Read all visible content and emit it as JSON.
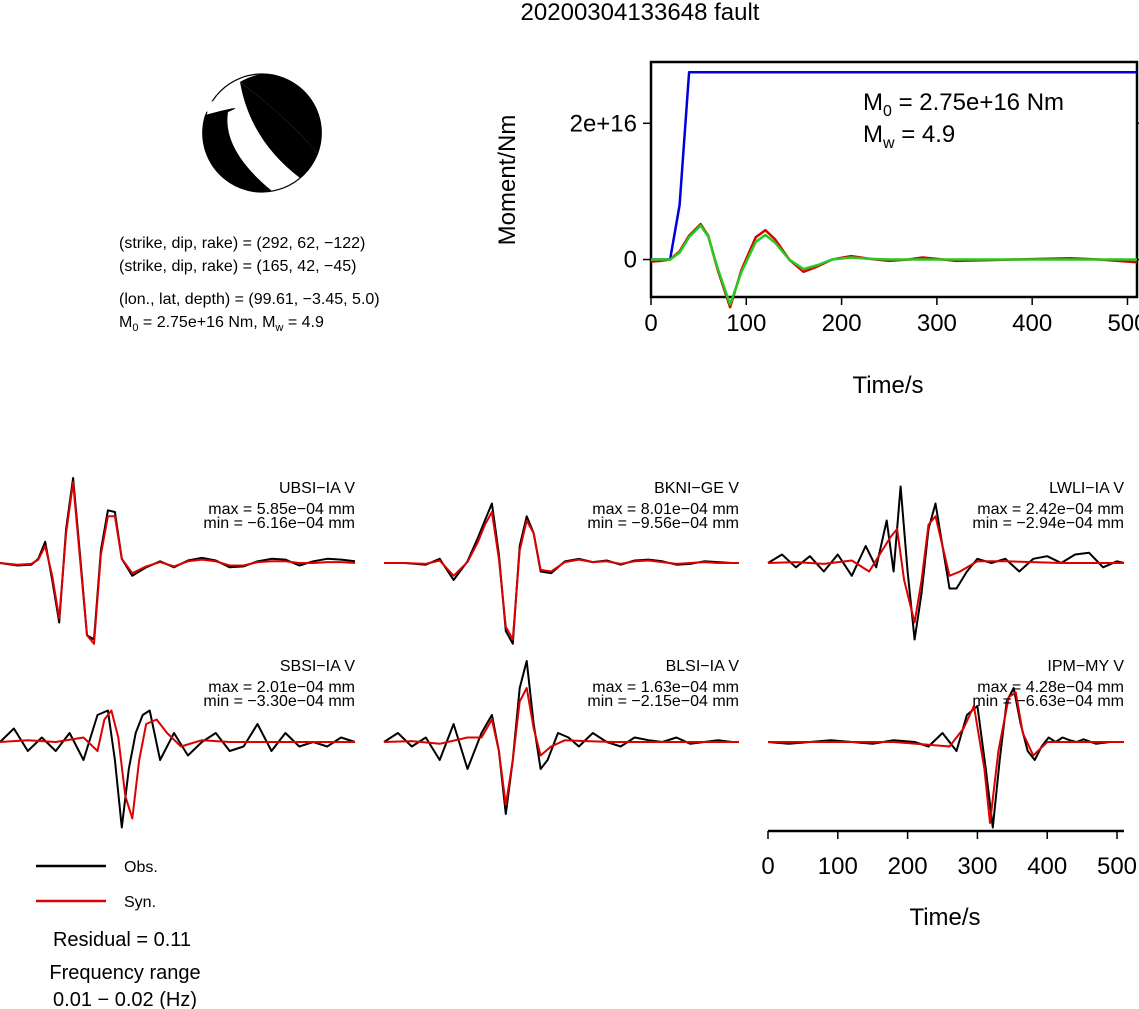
{
  "title": "20200304133648 fault",
  "colors": {
    "obs": "#000000",
    "syn": "#dd0000",
    "stf_cumulative": "#0000dd",
    "stf_rate": "#22cc22"
  },
  "mechanism": {
    "line1": "(strike, dip, rake) = (292, 62, −122)",
    "line2": "(strike, dip, rake) = (165, 42, −45)",
    "line3": "(lon., lat, depth) = (99.61, −3.45, 5.0)",
    "m0_prefix": "M",
    "m0_sub": "0",
    "line4_rest": " = 2.75e+16 Nm, M",
    "mw_sub": "w",
    "line4_end": " = 4.9"
  },
  "legend": {
    "obs": "Obs.",
    "syn": "Syn."
  },
  "footer": {
    "residual": "Residual = 0.11",
    "freq_label": "Frequency range",
    "freq_value": "0.01 − 0.02 (Hz)"
  },
  "chart_data": [
    {
      "type": "line",
      "name": "source-time-function",
      "xlabel": "Time/s",
      "ylabel": "Moment/Nm",
      "xlim": [
        0,
        510
      ],
      "ylim": [
        -5500000000000000.0,
        2.9e+16
      ],
      "xticks": [
        0,
        100,
        200,
        300,
        400,
        500
      ],
      "yticks": [
        {
          "value": 0,
          "label": "0"
        },
        {
          "value": 2e+16,
          "label": "2e+16"
        }
      ],
      "annotation_m0": {
        "symbol": "M",
        "sub": "0",
        "rest": " = 2.75e+16 Nm"
      },
      "annotation_mw": {
        "symbol": "M",
        "sub": "w",
        "rest": " = 4.9"
      },
      "series": [
        {
          "color": "#0000dd",
          "x": [
            0,
            20,
            30,
            40,
            510
          ],
          "y": [
            0,
            0,
            8000000000000000.0,
            2.75e+16,
            2.75e+16
          ]
        },
        {
          "color": "#dd0000",
          "x": [
            0,
            10,
            20,
            30,
            40,
            52,
            60,
            70,
            83,
            95,
            110,
            120,
            130,
            145,
            160,
            175,
            190,
            210,
            230,
            250,
            270,
            285,
            300,
            320,
            350,
            380,
            410,
            440,
            470,
            490,
            510
          ],
          "y": [
            -300000000000000.0,
            -200000000000000.0,
            0,
            1200000000000000.0,
            3500000000000000.0,
            5200000000000000.0,
            3500000000000000.0,
            -1500000000000000.0,
            -7000000000000000.0,
            -1500000000000000.0,
            3300000000000000.0,
            4300000000000000.0,
            3000000000000000.0,
            0,
            -1800000000000000.0,
            -1000000000000000.0,
            0,
            500000000000000.0,
            100000000000000.0,
            -200000000000000.0,
            0,
            300000000000000.0,
            100000000000000.0,
            -200000000000000.0,
            -100000000000000.0,
            0,
            100000000000000.0,
            200000000000000.0,
            0,
            -200000000000000.0,
            -400000000000000.0
          ]
        },
        {
          "color": "#22cc22",
          "x": [
            0,
            10,
            20,
            30,
            40,
            52,
            60,
            70,
            83,
            95,
            110,
            120,
            130,
            145,
            160,
            175,
            190,
            210,
            230,
            250,
            270,
            300,
            330,
            360,
            400,
            450,
            510
          ],
          "y": [
            0,
            0,
            0,
            1000000000000000.0,
            3300000000000000.0,
            5000000000000000.0,
            3400000000000000.0,
            -1300000000000000.0,
            -6600000000000000.0,
            -1800000000000000.0,
            2600000000000000.0,
            3600000000000000.0,
            2500000000000000.0,
            0,
            -1400000000000000.0,
            -800000000000000.0,
            0,
            300000000000000.0,
            100000000000000.0,
            0,
            0,
            0,
            0,
            0,
            0,
            0,
            0
          ]
        }
      ]
    },
    {
      "type": "line",
      "name": "waveforms",
      "xlabel": "Time/s",
      "xlim": [
        0,
        510
      ],
      "xticks": [
        0,
        100,
        200,
        300,
        400,
        500
      ],
      "stations": [
        {
          "label": "UBSI−IA V",
          "max": "max = 5.85e−04 mm",
          "min": "min = −6.16e−04 mm",
          "obs_t": [
            0,
            25,
            45,
            55,
            65,
            75,
            85,
            95,
            105,
            115,
            125,
            135,
            145,
            155,
            165,
            175,
            190,
            210,
            230,
            250,
            270,
            290,
            310,
            330,
            350,
            370,
            390,
            410,
            430,
            450,
            470,
            490,
            510
          ],
          "obs": [
            0,
            -0.03,
            -0.02,
            0.05,
            0.25,
            -0.2,
            -0.7,
            0.4,
            1.0,
            0.1,
            -0.85,
            -0.9,
            0.15,
            0.62,
            0.6,
            0.05,
            -0.15,
            -0.05,
            0.02,
            -0.05,
            0.03,
            0.06,
            0.03,
            -0.05,
            -0.04,
            0.02,
            0.05,
            0.04,
            -0.03,
            0.02,
            0.05,
            0.04,
            0.02
          ],
          "syn_t": [
            0,
            25,
            45,
            55,
            65,
            75,
            85,
            95,
            105,
            115,
            125,
            135,
            145,
            155,
            165,
            175,
            190,
            210,
            230,
            250,
            270,
            290,
            310,
            330,
            350,
            370,
            390,
            410,
            430,
            450,
            470,
            490,
            510
          ],
          "syn": [
            0,
            -0.02,
            -0.01,
            0.04,
            0.2,
            -0.15,
            -0.65,
            0.35,
            0.95,
            0.05,
            -0.85,
            -0.95,
            0.1,
            0.55,
            0.55,
            0.05,
            -0.12,
            -0.04,
            0.01,
            -0.04,
            0.02,
            0.04,
            0.02,
            -0.03,
            -0.03,
            0.01,
            0.02,
            0.02,
            0.0,
            0.0,
            0.01,
            0.01,
            0.0
          ]
        },
        {
          "label": "BKNI−GE V",
          "max": "max = 8.01e−04 mm",
          "min": "min = −9.56e−04 mm",
          "obs_t": [
            0,
            30,
            60,
            80,
            100,
            120,
            135,
            145,
            155,
            165,
            175,
            185,
            195,
            205,
            215,
            225,
            240,
            260,
            280,
            300,
            320,
            340,
            360,
            380,
            400,
            420,
            440,
            460,
            480,
            500,
            510
          ],
          "obs": [
            0,
            0.0,
            -0.02,
            0.05,
            -0.2,
            0.02,
            0.3,
            0.5,
            0.7,
            0.1,
            -0.8,
            -0.95,
            0.2,
            0.55,
            0.35,
            -0.1,
            -0.12,
            0.02,
            0.05,
            0.01,
            0.03,
            -0.02,
            0.03,
            0.04,
            0.02,
            -0.02,
            -0.01,
            0.02,
            0.01,
            0.0,
            0.0
          ],
          "syn_t": [
            0,
            30,
            60,
            80,
            100,
            120,
            135,
            145,
            155,
            165,
            175,
            185,
            195,
            205,
            215,
            225,
            240,
            260,
            280,
            300,
            320,
            340,
            360,
            380,
            400,
            420,
            440,
            460,
            480,
            500,
            510
          ],
          "syn": [
            0,
            0.0,
            -0.01,
            0.03,
            -0.15,
            0.01,
            0.25,
            0.45,
            0.6,
            0.05,
            -0.75,
            -0.9,
            0.15,
            0.5,
            0.35,
            -0.08,
            -0.1,
            0.01,
            0.04,
            0.01,
            0.02,
            -0.01,
            0.02,
            0.03,
            0.01,
            -0.01,
            0.0,
            0.01,
            0.0,
            0.0,
            0.0
          ]
        },
        {
          "label": "LWLI−IA V",
          "max": "max = 2.42e−04 mm",
          "min": "min = −2.94e−04 mm",
          "obs_t": [
            0,
            20,
            40,
            60,
            80,
            100,
            120,
            140,
            155,
            170,
            180,
            190,
            200,
            210,
            220,
            230,
            240,
            250,
            260,
            270,
            285,
            300,
            320,
            340,
            360,
            380,
            400,
            420,
            440,
            460,
            480,
            500,
            510
          ],
          "obs": [
            0,
            0.1,
            -0.05,
            0.08,
            -0.1,
            0.1,
            -0.15,
            0.2,
            -0.05,
            0.5,
            -0.1,
            0.9,
            -0.1,
            -0.9,
            -0.35,
            0.4,
            0.7,
            0.2,
            -0.3,
            -0.3,
            -0.1,
            0.05,
            0.0,
            0.05,
            -0.1,
            0.05,
            0.08,
            0.0,
            0.1,
            0.12,
            -0.05,
            0.02,
            0.0
          ],
          "syn_t": [
            0,
            40,
            80,
            120,
            145,
            160,
            175,
            185,
            195,
            210,
            220,
            230,
            240,
            250,
            260,
            275,
            300,
            340,
            380,
            420,
            460,
            500,
            510
          ],
          "syn": [
            0,
            0.01,
            -0.01,
            0.03,
            -0.1,
            0.1,
            0.3,
            0.4,
            -0.2,
            -0.7,
            -0.2,
            0.45,
            0.55,
            0.2,
            -0.15,
            -0.1,
            0.02,
            0.02,
            0.01,
            0.0,
            0.0,
            0.0,
            0.0
          ]
        },
        {
          "label": "SBSI−IA V",
          "max": "max = 2.01e−04 mm",
          "min": "min = −3.30e−04 mm",
          "obs_t": [
            0,
            20,
            40,
            60,
            80,
            100,
            120,
            130,
            140,
            155,
            165,
            175,
            185,
            195,
            205,
            215,
            230,
            250,
            270,
            290,
            310,
            330,
            350,
            370,
            390,
            410,
            430,
            450,
            470,
            490,
            510
          ],
          "obs": [
            0,
            0.15,
            -0.1,
            0.05,
            -0.1,
            0.1,
            -0.2,
            0.05,
            0.3,
            0.35,
            -0.2,
            -0.95,
            -0.3,
            0.1,
            0.3,
            0.35,
            -0.2,
            0.1,
            -0.15,
            0.0,
            0.1,
            -0.1,
            -0.05,
            0.2,
            -0.1,
            0.1,
            -0.05,
            0.0,
            -0.05,
            0.05,
            0.0
          ],
          "syn_t": [
            0,
            40,
            80,
            120,
            140,
            150,
            160,
            170,
            180,
            190,
            200,
            210,
            225,
            240,
            260,
            290,
            330,
            370,
            410,
            450,
            490,
            510
          ],
          "syn": [
            0,
            0.02,
            0.0,
            0.05,
            -0.1,
            0.25,
            0.35,
            0.05,
            -0.6,
            -0.85,
            -0.2,
            0.2,
            0.25,
            0.1,
            -0.05,
            0.02,
            0.0,
            0.0,
            0.0,
            0.0,
            0.0,
            0.0
          ]
        },
        {
          "label": "BLSI−IA V",
          "max": "max = 1.63e−04 mm",
          "min": "min = −2.15e−04 mm",
          "obs_t": [
            0,
            20,
            40,
            60,
            80,
            100,
            120,
            140,
            155,
            165,
            175,
            185,
            195,
            205,
            215,
            225,
            235,
            250,
            265,
            280,
            300,
            320,
            340,
            360,
            380,
            400,
            420,
            440,
            460,
            480,
            500,
            510
          ],
          "obs": [
            0,
            0.1,
            -0.05,
            0.05,
            -0.2,
            0.2,
            -0.3,
            0.1,
            0.3,
            -0.1,
            -0.8,
            -0.2,
            0.6,
            0.9,
            0.2,
            -0.3,
            -0.2,
            0.1,
            0.05,
            -0.05,
            0.1,
            0.0,
            -0.05,
            0.05,
            0.02,
            0.0,
            0.05,
            -0.02,
            0.0,
            0.02,
            0.0,
            0.0
          ],
          "syn_t": [
            0,
            40,
            80,
            120,
            140,
            155,
            165,
            175,
            185,
            195,
            205,
            215,
            225,
            240,
            260,
            290,
            330,
            370,
            410,
            450,
            490,
            510
          ],
          "syn": [
            0,
            0.01,
            -0.02,
            0.05,
            0.05,
            0.25,
            -0.1,
            -0.7,
            -0.2,
            0.45,
            0.6,
            0.15,
            -0.15,
            -0.05,
            0.02,
            0.01,
            0.0,
            0.0,
            0.0,
            0.0,
            0.0,
            0.0
          ]
        },
        {
          "label": "IPM−MY V",
          "max": "max = 4.28e−04 mm",
          "min": "min = −6.63e−04 mm",
          "obs_t": [
            0,
            30,
            60,
            90,
            120,
            150,
            180,
            210,
            230,
            250,
            270,
            285,
            300,
            312,
            322,
            332,
            342,
            352,
            362,
            372,
            382,
            392,
            402,
            412,
            422,
            432,
            442,
            452,
            470,
            490,
            510
          ],
          "obs": [
            0,
            -0.02,
            0.0,
            0.02,
            0.0,
            -0.02,
            0.02,
            0.0,
            -0.05,
            0.1,
            -0.1,
            0.3,
            0.4,
            -0.3,
            -0.95,
            -0.2,
            0.45,
            0.6,
            0.2,
            -0.1,
            -0.2,
            -0.05,
            0.05,
            0.0,
            0.05,
            0.02,
            0.0,
            0.03,
            -0.02,
            0.0,
            0.0
          ],
          "syn_t": [
            0,
            60,
            120,
            180,
            230,
            260,
            280,
            295,
            310,
            318,
            330,
            345,
            355,
            365,
            380,
            400,
            430,
            470,
            510
          ],
          "syn": [
            0,
            0.0,
            0.0,
            0.0,
            -0.03,
            -0.05,
            0.15,
            0.4,
            -0.3,
            -0.9,
            -0.1,
            0.5,
            0.55,
            0.1,
            -0.15,
            0.0,
            0.0,
            0.0,
            0.0
          ]
        }
      ]
    }
  ]
}
